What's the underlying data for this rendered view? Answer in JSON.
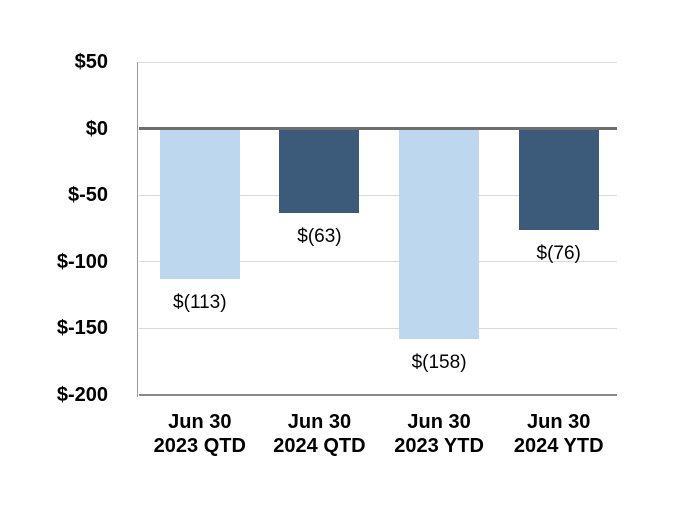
{
  "chart_data": {
    "type": "bar",
    "title": "",
    "xlabel": "",
    "ylabel": "",
    "ylim": [
      -200,
      50
    ],
    "grid": true,
    "legend": "none",
    "categories": [
      {
        "line1": "Jun 30",
        "line2": "2023 QTD"
      },
      {
        "line1": "Jun 30",
        "line2": "2024 QTD"
      },
      {
        "line1": "Jun 30",
        "line2": "2023 YTD"
      },
      {
        "line1": "Jun 30",
        "line2": "2024 YTD"
      }
    ],
    "values": [
      -113,
      -63,
      -158,
      -76
    ],
    "bar_labels": [
      "$(113)",
      "$(63)",
      "$(158)",
      "$(76)"
    ],
    "bar_colors": [
      "#BDD7EE",
      "#3C5B7A",
      "#BDD7EE",
      "#3C5B7A"
    ],
    "y_ticks": [
      {
        "value": 50,
        "label": "$50"
      },
      {
        "value": 0,
        "label": "$0"
      },
      {
        "value": -50,
        "label": "$-50"
      },
      {
        "value": -100,
        "label": "$-100"
      },
      {
        "value": -150,
        "label": "$-150"
      },
      {
        "value": -200,
        "label": "$-200"
      }
    ],
    "colors": {
      "light_series": "#BDD7EE",
      "dark_series": "#3C5B7A",
      "gridline": "#D9D9D9",
      "zero_line": "#6E6E6E",
      "bottom_axis_line": "#8A8A8A",
      "vertical_axis_line": "#9A9A9A",
      "text": "#000000",
      "background": "#FFFFFF"
    }
  }
}
